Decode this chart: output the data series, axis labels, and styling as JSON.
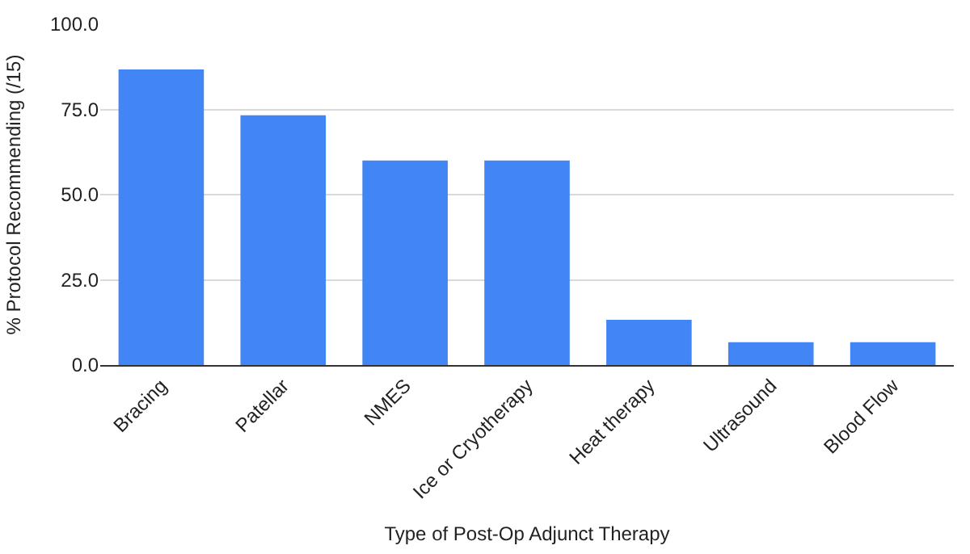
{
  "chart_data": {
    "type": "bar",
    "xlabel": "Type of Post-Op Adjunct Therapy",
    "ylabel": "% Protocol Recommending (/15)",
    "categories": [
      "Bracing",
      "Patellar",
      "NMES",
      "Ice or Cryotherapy",
      "Heat therapy",
      "Ultrasound",
      "Blood Flow"
    ],
    "values": [
      86.7,
      73.3,
      60.0,
      60.0,
      13.3,
      6.7,
      6.7
    ],
    "color": "#4285f4",
    "ylim": [
      0,
      100
    ],
    "yticks": [
      {
        "value": 0,
        "label": "0.0"
      },
      {
        "value": 25,
        "label": "25.0"
      },
      {
        "value": 50,
        "label": "50.0"
      },
      {
        "value": 75,
        "label": "75.0"
      },
      {
        "value": 100,
        "label": "100.0"
      }
    ],
    "grid": "y"
  }
}
